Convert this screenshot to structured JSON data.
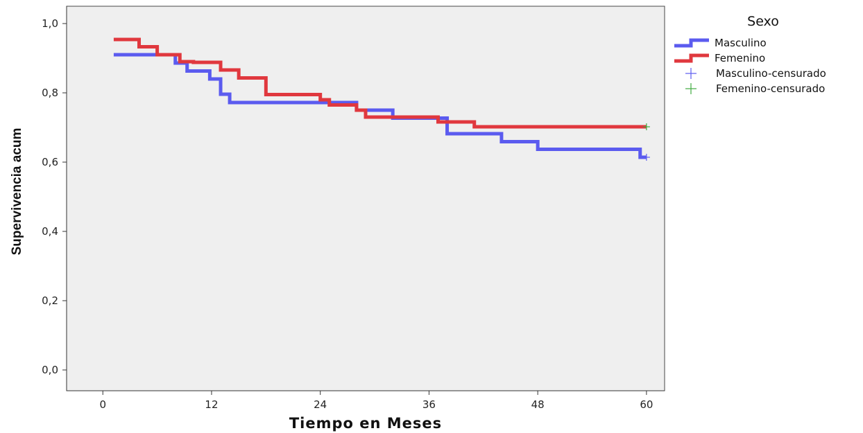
{
  "chart_data": {
    "type": "line",
    "step": true,
    "xlabel": "Tiempo en Meses",
    "ylabel": "Supervivencia acum",
    "xlim": [
      -4,
      62
    ],
    "ylim": [
      -0.06,
      1.05
    ],
    "xticks": [
      0,
      12,
      24,
      36,
      48,
      60
    ],
    "xtick_labels": [
      "0",
      "12",
      "24",
      "36",
      "48",
      "60"
    ],
    "yticks": [
      0.0,
      0.2,
      0.4,
      0.6,
      0.8,
      1.0
    ],
    "ytick_labels": [
      "0,0",
      "0,2",
      "0,4",
      "0,6",
      "0,8",
      "1,0"
    ],
    "plot_background": "#efefef",
    "grid": false,
    "legend": {
      "title": "Sexo",
      "placement": "right",
      "entries": [
        {
          "label": "Masculino",
          "kind": "line",
          "color": "#5b5bef"
        },
        {
          "label": "Femenino",
          "kind": "line",
          "color": "#e0383e"
        },
        {
          "label": "Masculino-censurado",
          "kind": "cross",
          "color": "#5b5bef"
        },
        {
          "label": "Femenino-censurado",
          "kind": "cross",
          "color": "#3faa3f"
        }
      ]
    },
    "series": [
      {
        "name": "Masculino",
        "color": "#5b5bef",
        "x": [
          1.2,
          8,
          9.3,
          11.8,
          13,
          14,
          28,
          32,
          38,
          44,
          48,
          59.3,
          60
        ],
        "y": [
          0.91,
          0.886,
          0.863,
          0.84,
          0.796,
          0.772,
          0.75,
          0.727,
          0.682,
          0.659,
          0.637,
          0.614,
          0.614
        ],
        "censored": [
          {
            "x": 60,
            "y": 0.614
          }
        ]
      },
      {
        "name": "Femenino",
        "color": "#e0383e",
        "x": [
          1.2,
          4,
          6,
          8.5,
          10,
          13,
          15,
          18,
          24,
          25,
          28,
          29,
          37,
          41,
          60
        ],
        "y": [
          0.954,
          0.933,
          0.91,
          0.89,
          0.888,
          0.866,
          0.843,
          0.795,
          0.78,
          0.765,
          0.75,
          0.73,
          0.716,
          0.702,
          0.702
        ],
        "censored": [
          {
            "x": 60,
            "y": 0.702
          }
        ]
      }
    ]
  }
}
